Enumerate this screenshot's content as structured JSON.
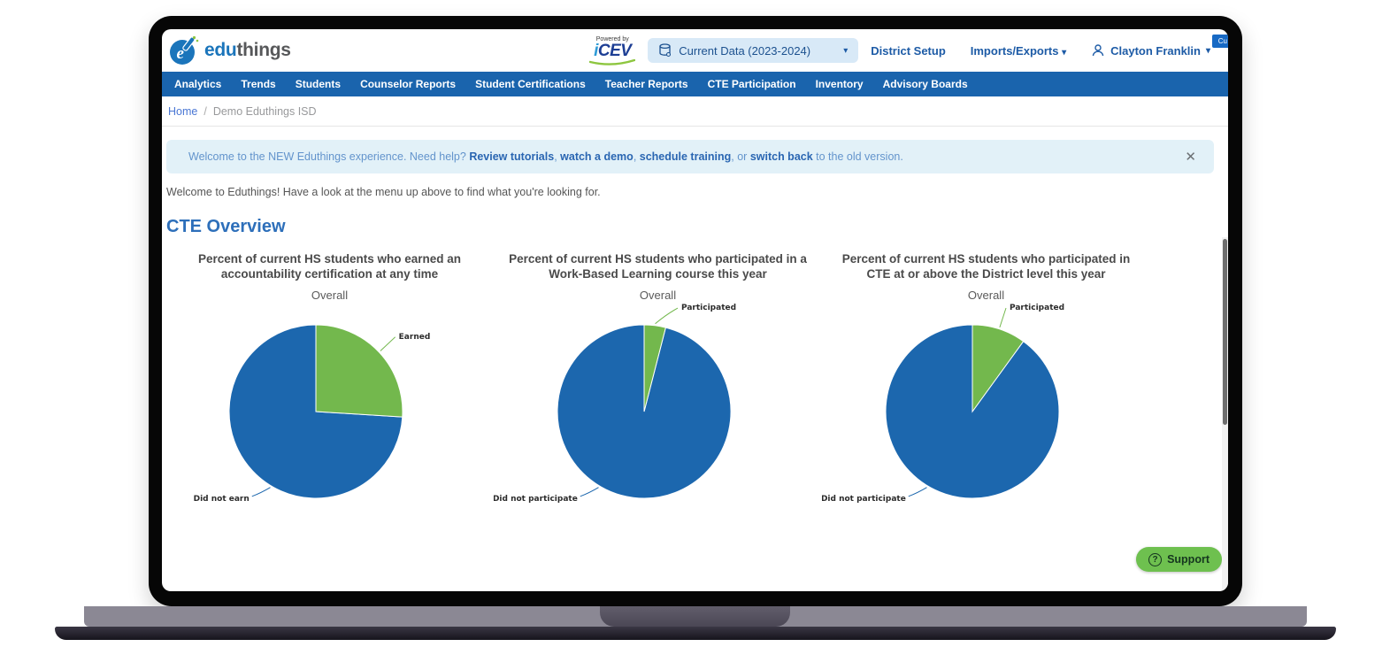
{
  "colors": {
    "nav_blue": "#1a64ad",
    "pie_blue": "#1c67ae",
    "pie_green": "#73b84d",
    "support_green": "#6ec04f",
    "banner_bg": "#e2f1f8",
    "brand_blue": "#1b75bb"
  },
  "icons": {
    "brand-pin-pencil-icon": "blue pin circle with e and pencil",
    "dataset-icon": "database cylinder",
    "chevron-down-icon": "▾",
    "user-icon": "person outline",
    "close-icon": "✕",
    "question-icon": "?"
  },
  "header": {
    "brand_edu": "edu",
    "brand_things": "things",
    "powered_by": "Powered by",
    "powered_brand_i": "i",
    "powered_brand_rest": "CEV",
    "dataset_selector_label": "Current Data (2023-2024)",
    "district_setup": "District Setup",
    "imports_exports": "Imports/Exports",
    "user_name": "Clayton Franklin",
    "corner_badge": "Cu"
  },
  "nav_items": [
    "Analytics",
    "Trends",
    "Students",
    "Counselor Reports",
    "Student Certifications",
    "Teacher Reports",
    "CTE Participation",
    "Inventory",
    "Advisory Boards"
  ],
  "breadcrumb": {
    "home": "Home",
    "separator": "/",
    "current": "Demo Eduthings ISD"
  },
  "banner": {
    "segments": [
      {
        "text": "Welcome to the NEW Eduthings experience. Need help? ",
        "bold": false
      },
      {
        "text": "Review tutorials",
        "bold": true
      },
      {
        "text": ", ",
        "bold": false
      },
      {
        "text": "watch a demo",
        "bold": true
      },
      {
        "text": ", ",
        "bold": false
      },
      {
        "text": "schedule training",
        "bold": true
      },
      {
        "text": ", or ",
        "bold": false
      },
      {
        "text": "switch back",
        "bold": true
      },
      {
        "text": " to the old version.",
        "bold": false
      }
    ]
  },
  "intro_text": "Welcome to Eduthings! Have a look at the menu up above to find what you're looking for.",
  "section_title": "CTE Overview",
  "support_label": "Support",
  "chart_data": [
    {
      "type": "pie",
      "title": "Percent of current HS students who earned an accountability certification at any time",
      "subtitle": "Overall",
      "unit": "percent",
      "slices": [
        {
          "label": "Earned",
          "value": 26,
          "color": "#73b84d"
        },
        {
          "label": "Did not earn",
          "value": 74,
          "color": "#1c67ae"
        }
      ]
    },
    {
      "type": "pie",
      "title": "Percent of current HS students who participated in a Work-Based Learning course this year",
      "subtitle": "Overall",
      "unit": "percent",
      "slices": [
        {
          "label": "Participated",
          "value": 4,
          "color": "#73b84d"
        },
        {
          "label": "Did not participate",
          "value": 96,
          "color": "#1c67ae"
        }
      ]
    },
    {
      "type": "pie",
      "title": "Percent of current HS students who participated in CTE at or above the District level this year",
      "subtitle": "Overall",
      "unit": "percent",
      "slices": [
        {
          "label": "Participated",
          "value": 10,
          "color": "#73b84d"
        },
        {
          "label": "Did not participate",
          "value": 90,
          "color": "#1c67ae"
        }
      ]
    }
  ]
}
